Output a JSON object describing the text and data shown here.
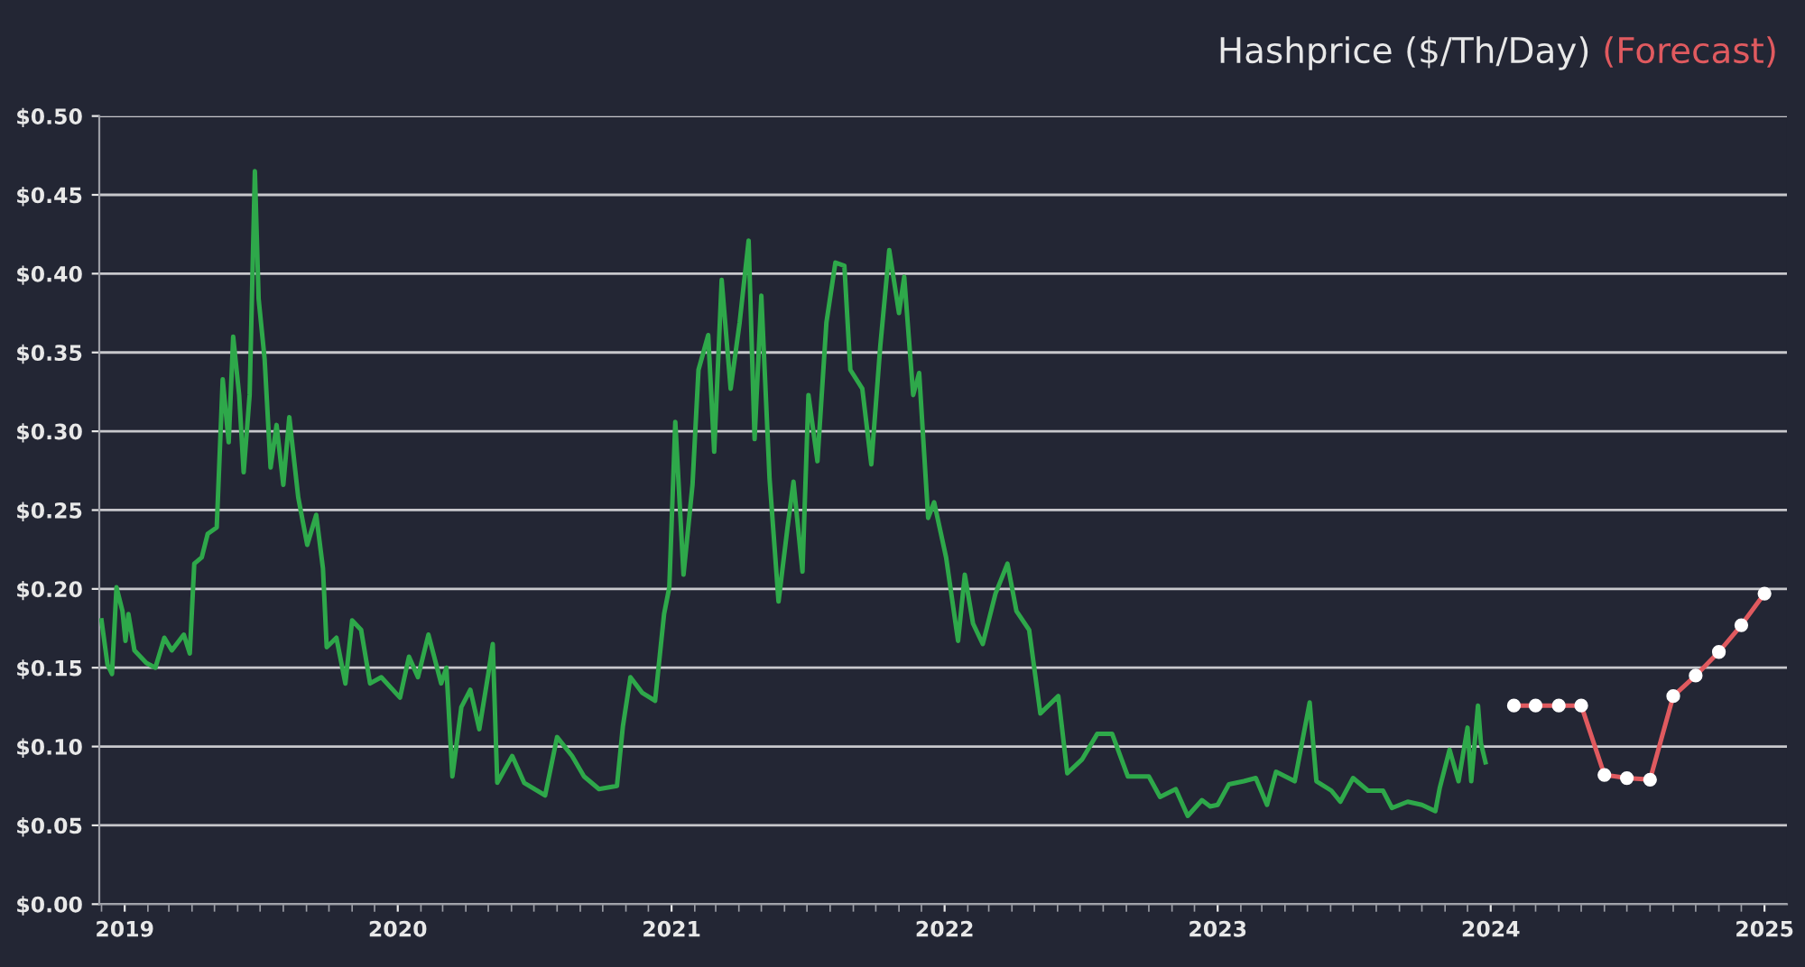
{
  "chart_data": {
    "type": "line",
    "title": "Hashprice ($/Th/Day)",
    "xlim": [
      "2018-11-28",
      "2025-01-31"
    ],
    "xticks": [
      "2019",
      "2020",
      "2021",
      "2022",
      "2023",
      "2024",
      "2025"
    ],
    "ylim": [
      0,
      0.5
    ],
    "yticks": [
      {
        "value": 0,
        "label": "$0.00"
      },
      {
        "value": 0.05,
        "label": "$0.05"
      },
      {
        "value": 0.1,
        "label": "$0.10"
      },
      {
        "value": 0.15,
        "label": "$0.15"
      },
      {
        "value": 0.2,
        "label": "$0.20"
      },
      {
        "value": 0.25,
        "label": "$0.25"
      },
      {
        "value": 0.3,
        "label": "$0.30"
      },
      {
        "value": 0.35,
        "label": "$0.35"
      },
      {
        "value": 0.4,
        "label": "$0.40"
      },
      {
        "value": 0.45,
        "label": "$0.45"
      },
      {
        "value": 0.5,
        "label": "$0.50"
      }
    ],
    "grid": "y",
    "legend": false,
    "series": [
      {
        "color": "#2ea84a",
        "marker": "none",
        "x": [
          "2018-12-01",
          "2018-12-09",
          "2018-12-15",
          "2018-12-21",
          "2018-12-29",
          "2019-01-02",
          "2019-01-06",
          "2019-01-14",
          "2019-01-30",
          "2019-02-11",
          "2019-02-23",
          "2019-03-05",
          "2019-03-21",
          "2019-03-29",
          "2019-04-04",
          "2019-04-14",
          "2019-04-22",
          "2019-05-04",
          "2019-05-12",
          "2019-05-20",
          "2019-05-26",
          "2019-06-03",
          "2019-06-09",
          "2019-06-17",
          "2019-06-24",
          "2019-06-29",
          "2019-07-07",
          "2019-07-15",
          "2019-07-23",
          "2019-08-01",
          "2019-08-09",
          "2019-08-21",
          "2019-09-02",
          "2019-09-14",
          "2019-09-23",
          "2019-09-28",
          "2019-10-11",
          "2019-10-23",
          "2019-11-01",
          "2019-11-13",
          "2019-11-25",
          "2019-12-10",
          "2020-01-04",
          "2020-01-16",
          "2020-01-28",
          "2020-02-11",
          "2020-02-28",
          "2020-03-06",
          "2020-03-14",
          "2020-03-26",
          "2020-04-07",
          "2020-04-19",
          "2020-05-01",
          "2020-05-07",
          "2020-05-13",
          "2020-06-02",
          "2020-06-18",
          "2020-07-16",
          "2020-08-01",
          "2020-08-21",
          "2020-09-06",
          "2020-09-26",
          "2020-10-20",
          "2020-10-28",
          "2020-11-07",
          "2020-11-23",
          "2020-12-10",
          "2020-12-22",
          "2020-12-29",
          "2021-01-06",
          "2021-01-17",
          "2021-01-29",
          "2021-02-06",
          "2021-02-19",
          "2021-02-27",
          "2021-03-09",
          "2021-03-21",
          "2021-04-02",
          "2021-04-14",
          "2021-04-22",
          "2021-05-01",
          "2021-05-12",
          "2021-05-24",
          "2021-06-05",
          "2021-06-13",
          "2021-06-25",
          "2021-07-03",
          "2021-07-15",
          "2021-07-27",
          "2021-08-08",
          "2021-08-20",
          "2021-08-28",
          "2021-09-13",
          "2021-09-25",
          "2021-10-07",
          "2021-10-19",
          "2021-11-01",
          "2021-11-08",
          "2021-11-20",
          "2021-11-28",
          "2021-12-10",
          "2021-12-18",
          "2022-01-03",
          "2022-01-19",
          "2022-01-28",
          "2022-02-08",
          "2022-02-21",
          "2022-03-10",
          "2022-03-26",
          "2022-04-07",
          "2022-04-24",
          "2022-05-09",
          "2022-06-02",
          "2022-06-14",
          "2022-07-04",
          "2022-07-24",
          "2022-08-13",
          "2022-09-03",
          "2022-10-01",
          "2022-10-16",
          "2022-11-06",
          "2022-11-22",
          "2022-12-11",
          "2022-12-22",
          "2023-01-01",
          "2023-01-16",
          "2023-02-05",
          "2023-02-21",
          "2023-03-08",
          "2023-03-20",
          "2023-04-14",
          "2023-05-04",
          "2023-05-13",
          "2023-06-02",
          "2023-06-14",
          "2023-07-01",
          "2023-07-21",
          "2023-08-10",
          "2023-08-22",
          "2023-09-12",
          "2023-10-01",
          "2023-10-19",
          "2023-10-25",
          "2023-11-07",
          "2023-11-19",
          "2023-12-01",
          "2023-12-06",
          "2023-12-15",
          "2023-12-19",
          "2023-12-25"
        ],
        "values": [
          0.18,
          0.152,
          0.146,
          0.201,
          0.186,
          0.167,
          0.184,
          0.161,
          0.153,
          0.15,
          0.169,
          0.161,
          0.171,
          0.159,
          0.216,
          0.22,
          0.235,
          0.239,
          0.333,
          0.293,
          0.36,
          0.323,
          0.274,
          0.323,
          0.465,
          0.384,
          0.346,
          0.277,
          0.304,
          0.266,
          0.309,
          0.258,
          0.228,
          0.247,
          0.213,
          0.163,
          0.169,
          0.14,
          0.18,
          0.174,
          0.14,
          0.144,
          0.131,
          0.157,
          0.144,
          0.171,
          0.14,
          0.15,
          0.081,
          0.125,
          0.136,
          0.111,
          0.146,
          0.165,
          0.077,
          0.094,
          0.077,
          0.069,
          0.106,
          0.094,
          0.081,
          0.073,
          0.075,
          0.113,
          0.144,
          0.134,
          0.129,
          0.184,
          0.201,
          0.306,
          0.209,
          0.266,
          0.339,
          0.361,
          0.287,
          0.396,
          0.327,
          0.369,
          0.421,
          0.295,
          0.386,
          0.27,
          0.192,
          0.239,
          0.268,
          0.211,
          0.323,
          0.281,
          0.369,
          0.407,
          0.405,
          0.339,
          0.327,
          0.279,
          0.354,
          0.415,
          0.375,
          0.398,
          0.323,
          0.337,
          0.245,
          0.255,
          0.22,
          0.167,
          0.209,
          0.178,
          0.165,
          0.197,
          0.216,
          0.186,
          0.174,
          0.121,
          0.132,
          0.083,
          0.092,
          0.108,
          0.108,
          0.081,
          0.081,
          0.068,
          0.073,
          0.056,
          0.066,
          0.062,
          0.063,
          0.076,
          0.078,
          0.08,
          0.063,
          0.084,
          0.078,
          0.128,
          0.078,
          0.072,
          0.065,
          0.08,
          0.072,
          0.072,
          0.061,
          0.065,
          0.063,
          0.059,
          0.074,
          0.098,
          0.078,
          0.112,
          0.078,
          0.126,
          0.102,
          0.09
        ]
      },
      {
        "name": "(Forecast)",
        "color": "#e05a5f",
        "marker": "circle",
        "x": [
          "2024-02-01",
          "2024-03-01",
          "2024-04-01",
          "2024-05-01",
          "2024-06-01",
          "2024-07-01",
          "2024-08-01",
          "2024-09-01",
          "2024-10-01",
          "2024-11-01",
          "2024-12-01",
          "2025-01-01"
        ],
        "values": [
          0.126,
          0.126,
          0.126,
          0.126,
          0.082,
          0.08,
          0.079,
          0.132,
          0.145,
          0.16,
          0.177,
          0.197
        ]
      }
    ]
  }
}
